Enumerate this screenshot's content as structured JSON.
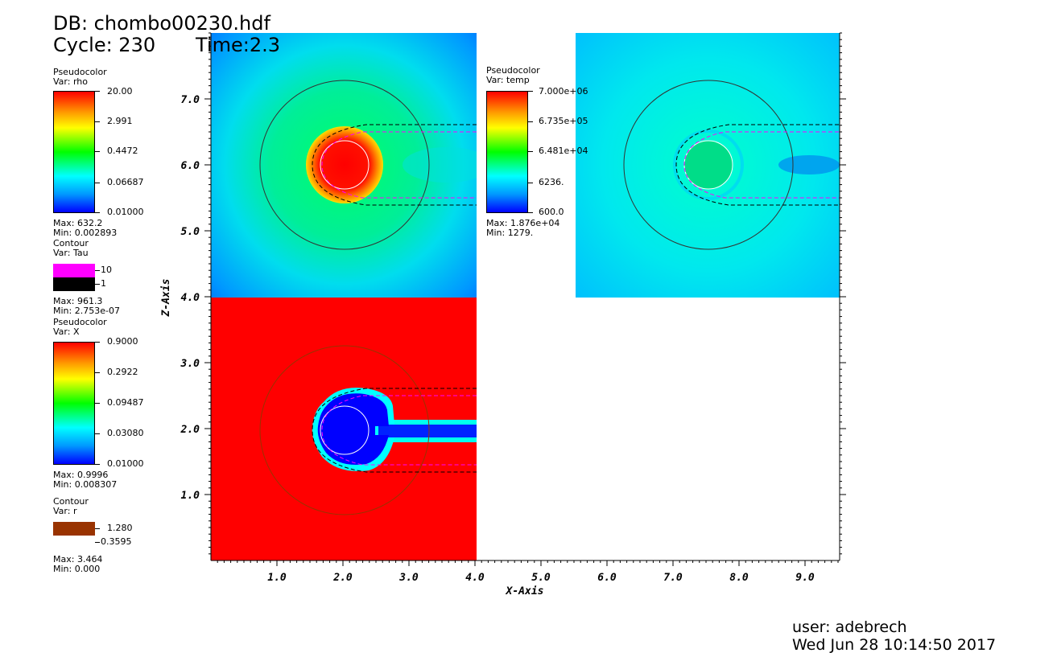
{
  "header": {
    "db": "DB: chombo00230.hdf",
    "cycle": "Cycle: 230",
    "time": "Time:2.3"
  },
  "legends": {
    "rho": {
      "plot_type": "Pseudocolor",
      "var": "Var: rho",
      "ticks": [
        "20.00",
        "2.991",
        "0.4472",
        "0.06687",
        "0.01000"
      ],
      "max": "Max: 632.2",
      "min": "Min: 0.002893"
    },
    "tau": {
      "plot_type": "Contour",
      "var": "Var: Tau",
      "levels": [
        "10",
        "1"
      ],
      "colors": [
        "#ff00ff",
        "#000000"
      ],
      "max": "Max: 961.3",
      "min": "Min: 2.753e-07"
    },
    "x": {
      "plot_type": "Pseudocolor",
      "var": "Var: X",
      "ticks": [
        "0.9000",
        "0.2922",
        "0.09487",
        "0.03080",
        "0.01000"
      ],
      "max": "Max: 0.9996",
      "min": "Min: 0.008307"
    },
    "r": {
      "plot_type": "Contour",
      "var": "Var: r",
      "levels": [
        "1.280",
        "0.3595"
      ],
      "colors": [
        "#993300",
        "#ffffff"
      ],
      "max": "Max: 3.464",
      "min": "Min: 0.000"
    },
    "temp": {
      "plot_type": "Pseudocolor",
      "var": "Var: temp",
      "ticks": [
        "7.000e+06",
        "6.735e+05",
        "6.481e+04",
        "6236.",
        "600.0"
      ],
      "max": "Max: 1.876e+04",
      "min": "Min: 1279."
    }
  },
  "footer": {
    "user": "user: adebrech",
    "date": "Wed Jun 28 10:14:50 2017"
  },
  "chart_data": {
    "type": "heatmap",
    "xlabel": "X-Axis",
    "ylabel": "Z-Axis",
    "xlim": [
      0,
      9.5
    ],
    "ylim": [
      0,
      8.0
    ],
    "x_ticks": [
      "1.0",
      "2.0",
      "3.0",
      "4.0",
      "5.0",
      "6.0",
      "7.0",
      "8.0",
      "9.0"
    ],
    "y_ticks": [
      "1.0",
      "2.0",
      "3.0",
      "4.0",
      "5.0",
      "6.0",
      "7.0"
    ],
    "x_tick_values": [
      1,
      2,
      3,
      4,
      5,
      6,
      7,
      8,
      9
    ],
    "y_tick_values": [
      1,
      2,
      3,
      4,
      5,
      6,
      7
    ],
    "panels": [
      {
        "var": "rho",
        "x_range": [
          0,
          4
        ],
        "z_range": [
          4,
          8
        ],
        "center": [
          2.0,
          6.0
        ]
      },
      {
        "var": "X",
        "x_range": [
          0,
          4
        ],
        "z_range": [
          0,
          4
        ],
        "center": [
          2.0,
          2.0
        ]
      },
      {
        "var": "temp",
        "x_range": [
          5.5,
          9.5
        ],
        "z_range": [
          4,
          8
        ],
        "center": [
          7.5,
          6.0
        ]
      }
    ],
    "contours": {
      "r_outer_radius": 1.28,
      "r_inner_radius": 0.3595,
      "tau_levels": [
        10,
        1
      ]
    }
  }
}
